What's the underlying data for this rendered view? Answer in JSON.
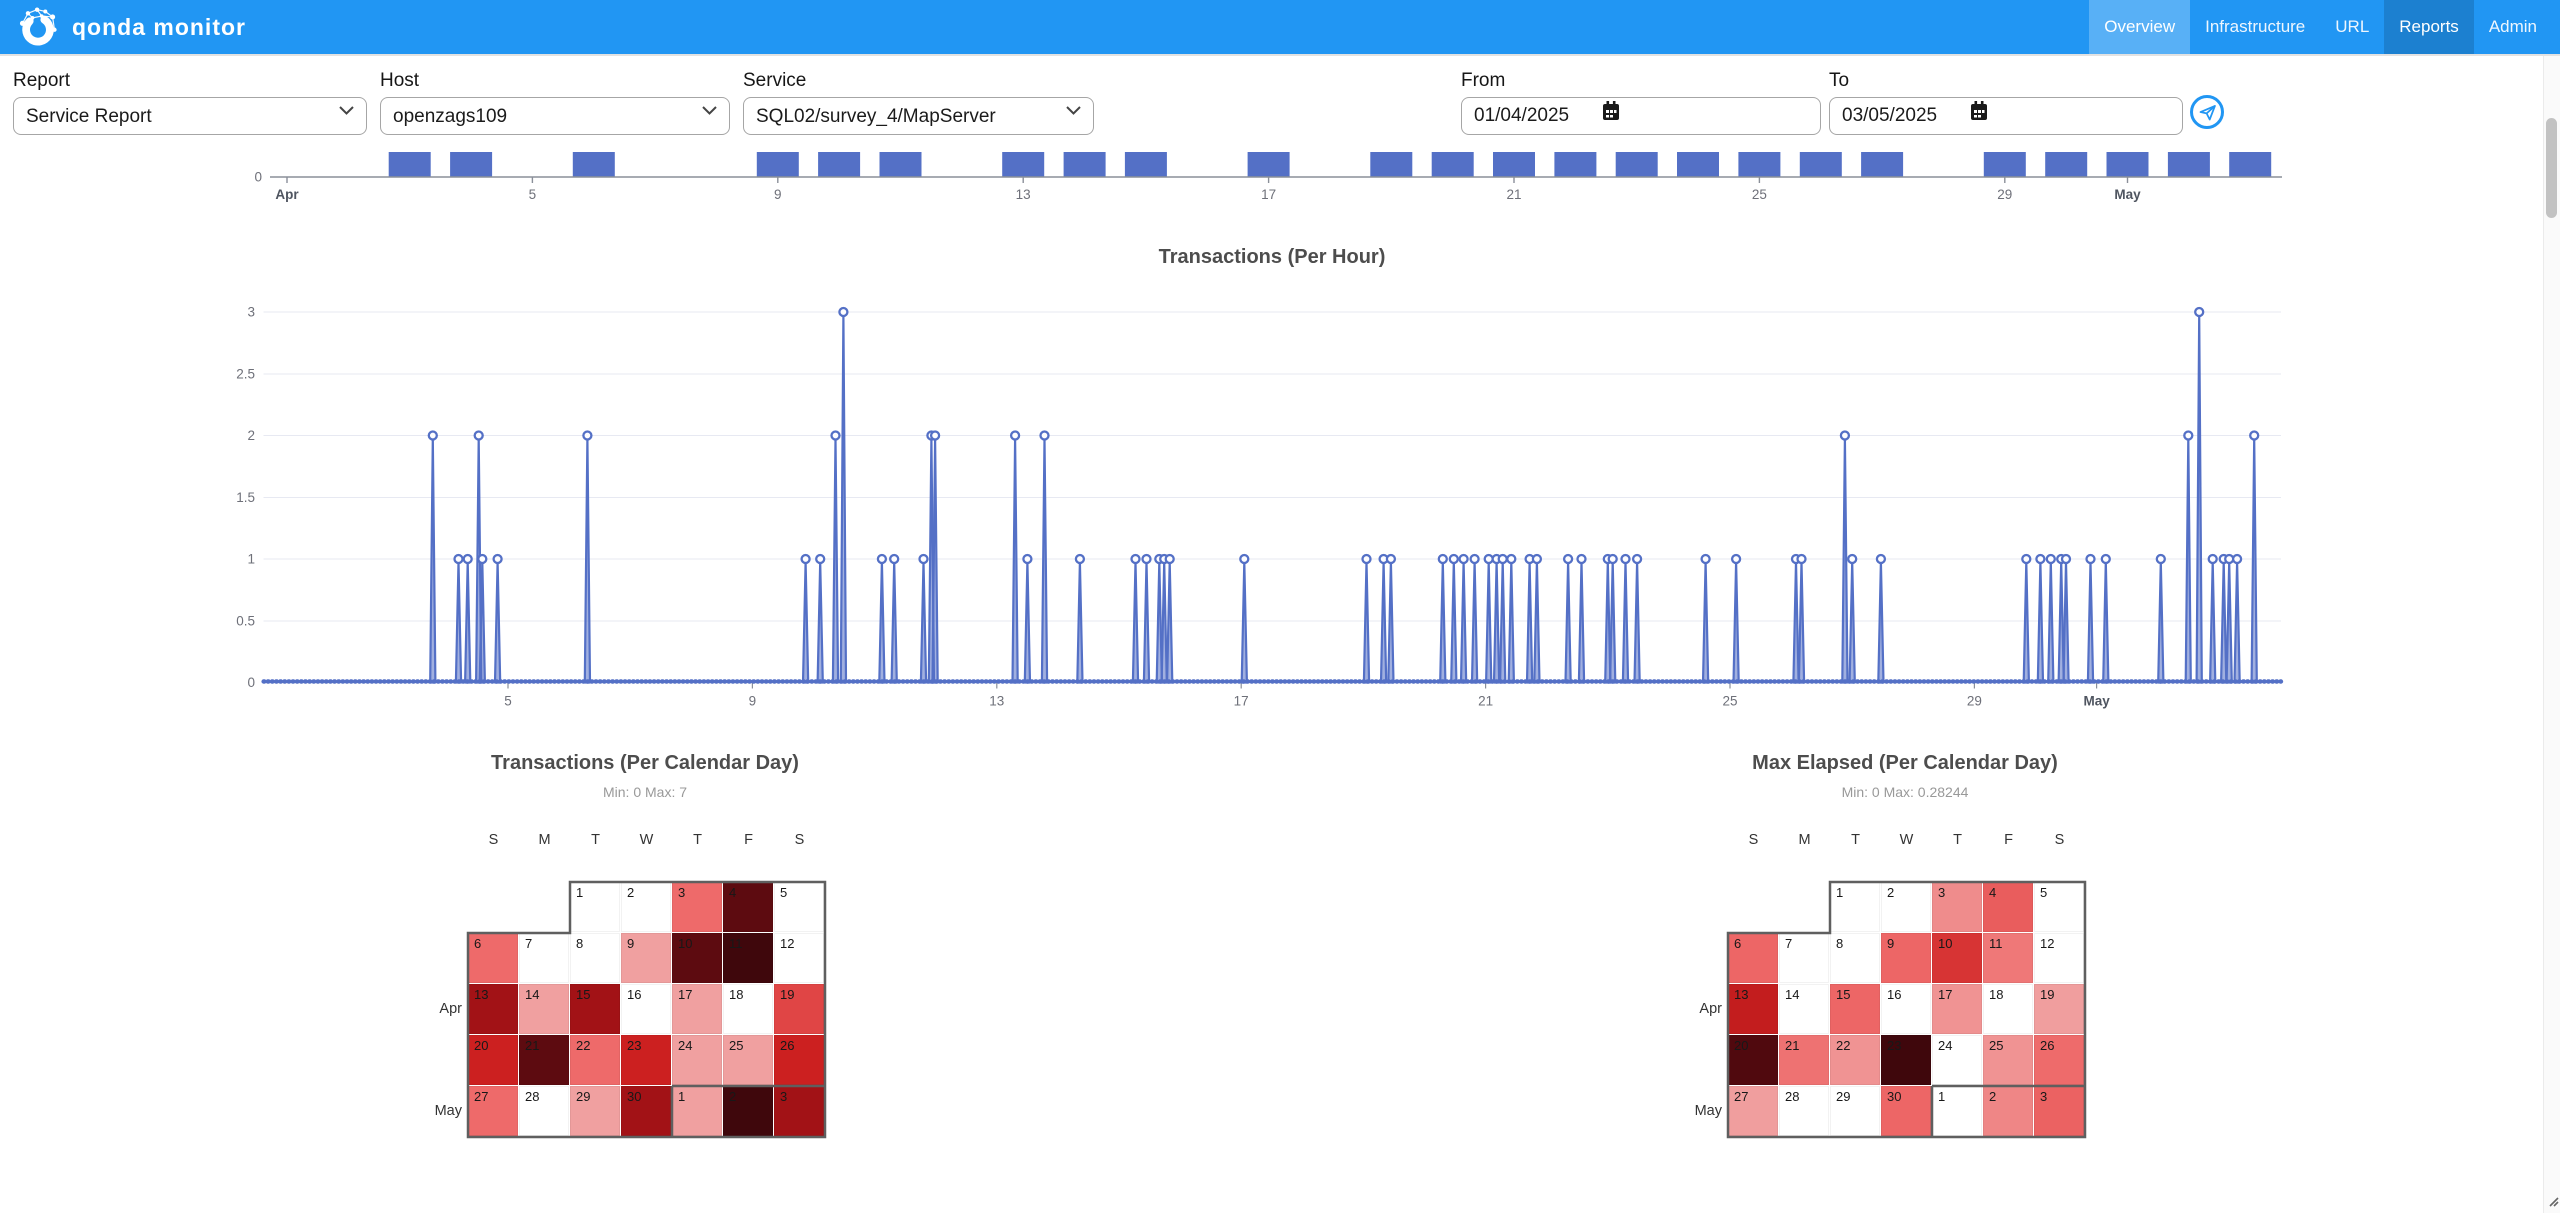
{
  "navbar": {
    "brand": "qonda monitor",
    "items": [
      {
        "label": "Overview",
        "state": "hover"
      },
      {
        "label": "Infrastructure",
        "state": "normal"
      },
      {
        "label": "URL",
        "state": "normal"
      },
      {
        "label": "Reports",
        "state": "active"
      },
      {
        "label": "Admin",
        "state": "normal"
      }
    ]
  },
  "filters": {
    "report": {
      "label": "Report",
      "value": "Service Report"
    },
    "host": {
      "label": "Host",
      "value": "openzags109"
    },
    "service": {
      "label": "Service",
      "value": "SQL02/survey_4/MapServer"
    },
    "from": {
      "label": "From",
      "value": "01/04/2025"
    },
    "to": {
      "label": "To",
      "value": "03/05/2025"
    },
    "submit_icon": "send-icon"
  },
  "colors": {
    "navbar": "#2196f3",
    "accent": "#2196f3",
    "series_blue": "#5470c6",
    "axis_line": "#8a8f99",
    "axis_text": "#6e7079",
    "grid": "#e7e9f2",
    "heat_stops": [
      [
        0,
        "#ffffff"
      ],
      [
        0.143,
        "#f0a0a0"
      ],
      [
        0.286,
        "#ee6a6a"
      ],
      [
        0.429,
        "#e04545"
      ],
      [
        0.571,
        "#cc2020"
      ],
      [
        0.714,
        "#a21216"
      ],
      [
        0.857,
        "#5d0b10"
      ],
      [
        1,
        "#3f070c"
      ]
    ]
  },
  "chart_data": [
    {
      "id": "availability-strip",
      "type": "bar",
      "y_zero_label": "0",
      "tick_labels": [
        [
          1,
          "Apr"
        ],
        [
          5,
          "5"
        ],
        [
          9,
          "9"
        ],
        [
          13,
          "13"
        ],
        [
          17,
          "17"
        ],
        [
          21,
          "21"
        ],
        [
          25,
          "25"
        ],
        [
          29,
          "29"
        ],
        [
          31,
          "May"
        ]
      ],
      "x_range_days": 33,
      "active_days": [
        3,
        4,
        6,
        9,
        10,
        11,
        13,
        14,
        15,
        17,
        19,
        20,
        21,
        22,
        23,
        24,
        25,
        26,
        27,
        29,
        30,
        31,
        32,
        33
      ]
    },
    {
      "id": "transactions-per-hour",
      "type": "line",
      "title": "Transactions (Per Hour)",
      "ylim": [
        0,
        3
      ],
      "y_ticks": [
        "0",
        "0.5",
        "1",
        "1.5",
        "2",
        "2.5",
        "3"
      ],
      "x_ticks": [
        [
          5,
          "5"
        ],
        [
          9,
          "9"
        ],
        [
          13,
          "13"
        ],
        [
          17,
          "17"
        ],
        [
          21,
          "21"
        ],
        [
          25,
          "25"
        ],
        [
          29,
          "29"
        ],
        [
          31,
          "May"
        ]
      ],
      "grid": true,
      "spikes": [
        [
          3.77,
          2
        ],
        [
          4.19,
          1
        ],
        [
          4.34,
          1
        ],
        [
          4.52,
          2
        ],
        [
          4.58,
          1
        ],
        [
          4.83,
          1
        ],
        [
          6.3,
          2
        ],
        [
          9.87,
          1
        ],
        [
          10.11,
          1
        ],
        [
          10.36,
          2
        ],
        [
          10.49,
          3
        ],
        [
          11.12,
          1
        ],
        [
          11.32,
          1
        ],
        [
          11.8,
          1
        ],
        [
          11.93,
          2
        ],
        [
          11.99,
          2
        ],
        [
          13.3,
          2
        ],
        [
          13.5,
          1
        ],
        [
          13.78,
          2
        ],
        [
          14.36,
          1
        ],
        [
          15.27,
          1
        ],
        [
          15.45,
          1
        ],
        [
          15.66,
          1
        ],
        [
          15.74,
          1
        ],
        [
          15.83,
          1
        ],
        [
          17.05,
          1
        ],
        [
          19.05,
          1
        ],
        [
          19.33,
          1
        ],
        [
          19.45,
          1
        ],
        [
          20.3,
          1
        ],
        [
          20.48,
          1
        ],
        [
          20.64,
          1
        ],
        [
          20.82,
          1
        ],
        [
          21.05,
          1
        ],
        [
          21.18,
          1
        ],
        [
          21.28,
          1
        ],
        [
          21.42,
          1
        ],
        [
          21.72,
          1
        ],
        [
          21.84,
          1
        ],
        [
          22.35,
          1
        ],
        [
          22.57,
          1
        ],
        [
          23.0,
          1
        ],
        [
          23.08,
          1
        ],
        [
          23.29,
          1
        ],
        [
          23.48,
          1
        ],
        [
          24.6,
          1
        ],
        [
          25.1,
          1
        ],
        [
          26.08,
          1
        ],
        [
          26.17,
          1
        ],
        [
          26.88,
          2
        ],
        [
          27.0,
          1
        ],
        [
          27.47,
          1
        ],
        [
          29.85,
          1
        ],
        [
          30.08,
          1
        ],
        [
          30.25,
          1
        ],
        [
          30.42,
          1
        ],
        [
          30.5,
          1
        ],
        [
          30.9,
          1
        ],
        [
          31.15,
          1
        ],
        [
          32.05,
          1
        ],
        [
          32.5,
          2
        ],
        [
          32.68,
          3
        ],
        [
          32.9,
          1
        ],
        [
          33.08,
          1
        ],
        [
          33.17,
          1
        ],
        [
          33.3,
          1
        ],
        [
          33.58,
          2
        ]
      ]
    },
    {
      "id": "transactions-per-day",
      "type": "heatmap",
      "title": "Transactions (Per Calendar Day)",
      "subtitle": "Min: 0 Max: 7",
      "min": 0,
      "max": 7,
      "weekday_headers": [
        "S",
        "M",
        "T",
        "W",
        "T",
        "F",
        "S"
      ],
      "month_labels": [
        "Apr",
        "May"
      ],
      "rows": [
        [
          null,
          null,
          [
            "1",
            0
          ],
          [
            "2",
            0
          ],
          [
            "3",
            2
          ],
          [
            "4",
            6
          ],
          [
            "5",
            0
          ]
        ],
        [
          [
            "6",
            2
          ],
          [
            "7",
            0
          ],
          [
            "8",
            0
          ],
          [
            "9",
            1
          ],
          [
            "10",
            6
          ],
          [
            "11",
            7
          ],
          [
            "12",
            0
          ]
        ],
        [
          [
            "13",
            5
          ],
          [
            "14",
            1
          ],
          [
            "15",
            5
          ],
          [
            "16",
            0
          ],
          [
            "17",
            1
          ],
          [
            "18",
            0
          ],
          [
            "19",
            3
          ]
        ],
        [
          [
            "20",
            4
          ],
          [
            "21",
            6
          ],
          [
            "22",
            2
          ],
          [
            "23",
            4
          ],
          [
            "24",
            1
          ],
          [
            "25",
            1
          ],
          [
            "26",
            4
          ]
        ],
        [
          [
            "27",
            2
          ],
          [
            "28",
            0
          ],
          [
            "29",
            1
          ],
          [
            "30",
            5
          ],
          [
            "1",
            1
          ],
          [
            "2",
            7
          ],
          [
            "3",
            5
          ]
        ]
      ]
    },
    {
      "id": "max-elapsed-per-day",
      "type": "heatmap",
      "title": "Max Elapsed (Per Calendar Day)",
      "subtitle": "Min: 0 Max: 0.28244",
      "min": 0,
      "max": 0.28244,
      "weekday_headers": [
        "S",
        "M",
        "T",
        "W",
        "T",
        "F",
        "S"
      ],
      "month_labels": [
        "Apr",
        "May"
      ],
      "rows": [
        [
          null,
          null,
          [
            "1",
            0
          ],
          [
            "2",
            0
          ],
          [
            "3",
            0.055
          ],
          [
            "4",
            0.095
          ],
          [
            "5",
            0
          ]
        ],
        [
          [
            "6",
            0.085
          ],
          [
            "7",
            0
          ],
          [
            "8",
            0
          ],
          [
            "9",
            0.085
          ],
          [
            "10",
            0.14
          ],
          [
            "11",
            0.07
          ],
          [
            "12",
            0
          ]
        ],
        [
          [
            "13",
            0.17
          ],
          [
            "14",
            0
          ],
          [
            "15",
            0.085
          ],
          [
            "16",
            0
          ],
          [
            "17",
            0.05
          ],
          [
            "18",
            0
          ],
          [
            "19",
            0.042
          ]
        ],
        [
          [
            "20",
            0.26
          ],
          [
            "21",
            0.075
          ],
          [
            "22",
            0.05
          ],
          [
            "23",
            0.28244
          ],
          [
            "24",
            0
          ],
          [
            "25",
            0.05
          ],
          [
            "26",
            0.08
          ]
        ],
        [
          [
            "27",
            0.042
          ],
          [
            "28",
            0
          ],
          [
            "29",
            0
          ],
          [
            "30",
            0.085
          ],
          [
            "1",
            0
          ],
          [
            "2",
            0.06
          ],
          [
            "3",
            0.09
          ]
        ]
      ]
    }
  ]
}
